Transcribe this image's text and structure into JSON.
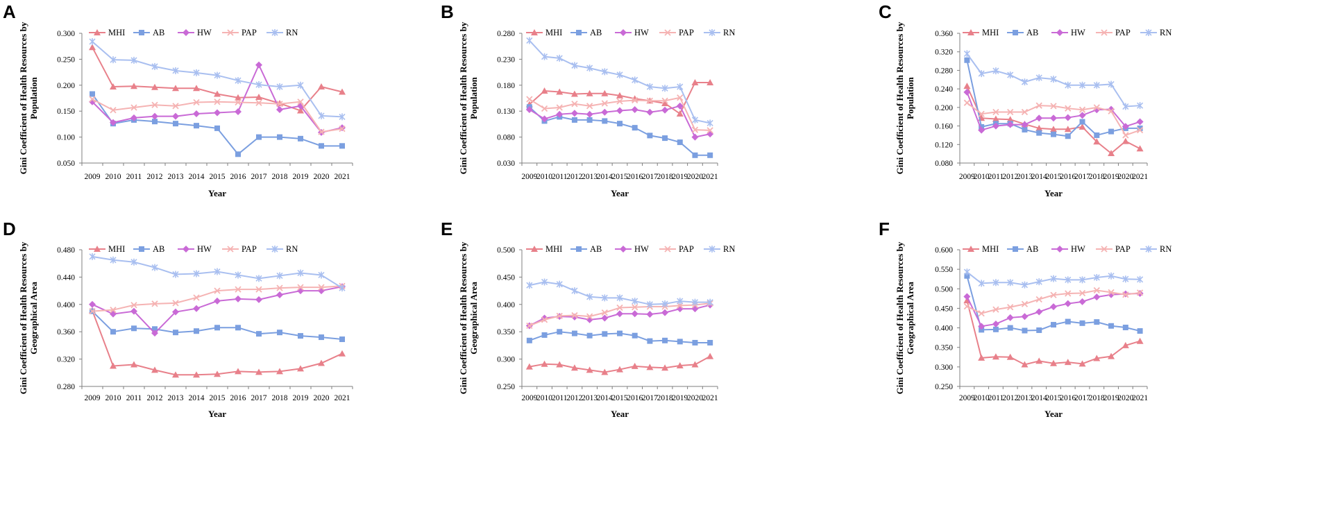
{
  "figure": {
    "years": [
      "2009",
      "2010",
      "2011",
      "2012",
      "2013",
      "2014",
      "2015",
      "2016",
      "2017",
      "2018",
      "2019",
      "2020",
      "2021"
    ],
    "xlabel": "Year",
    "colors": {
      "MHI": "#e8808a",
      "AB": "#7b9fe0",
      "HW": "#c96ad6",
      "PAP": "#f5b3b3",
      "RN": "#a9bff0"
    },
    "markers": {
      "MHI": "triangle",
      "AB": "square",
      "HW": "diamond",
      "PAP": "x-cross",
      "RN": "x-star"
    }
  },
  "chart_data": [
    {
      "panel": "A",
      "type": "line",
      "ylabel": [
        "Gini Coefficient of Health Resources by",
        "Population"
      ],
      "ylim": [
        0.05,
        0.3
      ],
      "yticks": [
        "0.050",
        "0.100",
        "0.150",
        "0.200",
        "0.250",
        "0.300"
      ],
      "series": [
        {
          "name": "MHI",
          "values": [
            0.273,
            0.197,
            0.198,
            0.196,
            0.194,
            0.194,
            0.183,
            0.176,
            0.177,
            0.165,
            0.151,
            0.197,
            0.187
          ]
        },
        {
          "name": "AB",
          "values": [
            0.183,
            0.126,
            0.133,
            0.13,
            0.126,
            0.122,
            0.117,
            0.067,
            0.1,
            0.1,
            0.097,
            0.083,
            0.083
          ]
        },
        {
          "name": "HW",
          "values": [
            0.168,
            0.128,
            0.137,
            0.14,
            0.14,
            0.145,
            0.147,
            0.149,
            0.239,
            0.153,
            0.16,
            0.109,
            0.118
          ]
        },
        {
          "name": "PAP",
          "values": [
            0.173,
            0.152,
            0.157,
            0.162,
            0.16,
            0.167,
            0.168,
            0.167,
            0.166,
            0.164,
            0.168,
            0.11,
            0.116
          ]
        },
        {
          "name": "RN",
          "values": [
            0.284,
            0.249,
            0.248,
            0.236,
            0.228,
            0.224,
            0.219,
            0.209,
            0.201,
            0.197,
            0.2,
            0.141,
            0.139
          ]
        }
      ]
    },
    {
      "panel": "B",
      "type": "line",
      "ylabel": [
        "Gini Coefficient of Health Resources by",
        "Population"
      ],
      "ylim": [
        0.03,
        0.28
      ],
      "yticks": [
        "0.030",
        "0.080",
        "0.130",
        "0.180",
        "0.230",
        "0.280"
      ],
      "series": [
        {
          "name": "MHI",
          "values": [
            0.143,
            0.169,
            0.167,
            0.163,
            0.164,
            0.164,
            0.16,
            0.154,
            0.15,
            0.145,
            0.125,
            0.185,
            0.185
          ]
        },
        {
          "name": "AB",
          "values": [
            0.138,
            0.111,
            0.119,
            0.113,
            0.113,
            0.111,
            0.106,
            0.098,
            0.083,
            0.078,
            0.07,
            0.045,
            0.045
          ]
        },
        {
          "name": "HW",
          "values": [
            0.133,
            0.115,
            0.124,
            0.126,
            0.124,
            0.128,
            0.131,
            0.133,
            0.128,
            0.132,
            0.14,
            0.08,
            0.086
          ]
        },
        {
          "name": "PAP",
          "values": [
            0.153,
            0.135,
            0.137,
            0.144,
            0.14,
            0.145,
            0.149,
            0.151,
            0.15,
            0.15,
            0.156,
            0.094,
            0.093
          ]
        },
        {
          "name": "RN",
          "values": [
            0.266,
            0.235,
            0.232,
            0.218,
            0.213,
            0.206,
            0.2,
            0.19,
            0.177,
            0.174,
            0.177,
            0.113,
            0.107
          ]
        }
      ]
    },
    {
      "panel": "C",
      "type": "line",
      "ylabel": [
        "Gini Coefficient of Health Resources by",
        "Population"
      ],
      "ylim": [
        0.08,
        0.36
      ],
      "yticks": [
        "0.080",
        "0.120",
        "0.160",
        "0.200",
        "0.240",
        "0.280",
        "0.320",
        "0.360"
      ],
      "series": [
        {
          "name": "MHI",
          "values": [
            0.246,
            0.177,
            0.175,
            0.174,
            0.164,
            0.155,
            0.153,
            0.153,
            0.158,
            0.126,
            0.101,
            0.127,
            0.111
          ]
        },
        {
          "name": "AB",
          "values": [
            0.302,
            0.158,
            0.165,
            0.165,
            0.152,
            0.145,
            0.142,
            0.138,
            0.169,
            0.14,
            0.148,
            0.155,
            0.155
          ]
        },
        {
          "name": "HW",
          "values": [
            0.233,
            0.151,
            0.16,
            0.163,
            0.163,
            0.177,
            0.177,
            0.178,
            0.183,
            0.195,
            0.196,
            0.159,
            0.169
          ]
        },
        {
          "name": "PAP",
          "values": [
            0.21,
            0.186,
            0.19,
            0.19,
            0.19,
            0.204,
            0.203,
            0.198,
            0.195,
            0.2,
            0.192,
            0.14,
            0.151
          ]
        },
        {
          "name": "RN",
          "values": [
            0.316,
            0.273,
            0.279,
            0.27,
            0.255,
            0.264,
            0.261,
            0.248,
            0.248,
            0.248,
            0.25,
            0.202,
            0.204
          ]
        }
      ]
    },
    {
      "panel": "D",
      "type": "line",
      "ylabel": [
        "Gini Coefficient of Health Resources by",
        "Geographical Area"
      ],
      "ylim": [
        0.28,
        0.48
      ],
      "yticks": [
        "0.280",
        "0.320",
        "0.360",
        "0.400",
        "0.440",
        "0.480"
      ],
      "series": [
        {
          "name": "MHI",
          "values": [
            0.391,
            0.31,
            0.312,
            0.304,
            0.297,
            0.297,
            0.298,
            0.302,
            0.301,
            0.302,
            0.306,
            0.314,
            0.328
          ]
        },
        {
          "name": "AB",
          "values": [
            0.39,
            0.36,
            0.365,
            0.364,
            0.359,
            0.361,
            0.366,
            0.366,
            0.357,
            0.359,
            0.354,
            0.352,
            0.349
          ]
        },
        {
          "name": "HW",
          "values": [
            0.4,
            0.386,
            0.39,
            0.358,
            0.389,
            0.394,
            0.405,
            0.408,
            0.407,
            0.414,
            0.42,
            0.42,
            0.426
          ]
        },
        {
          "name": "PAP",
          "values": [
            0.39,
            0.392,
            0.399,
            0.401,
            0.402,
            0.41,
            0.42,
            0.422,
            0.422,
            0.424,
            0.425,
            0.425,
            0.427
          ]
        },
        {
          "name": "RN",
          "values": [
            0.47,
            0.465,
            0.462,
            0.454,
            0.444,
            0.445,
            0.448,
            0.443,
            0.438,
            0.442,
            0.446,
            0.443,
            0.424
          ]
        }
      ]
    },
    {
      "panel": "E",
      "type": "line",
      "ylabel": [
        "Gini Coefficient of Health Resources by",
        "Geographical Area"
      ],
      "ylim": [
        0.25,
        0.5
      ],
      "yticks": [
        "0.250",
        "0.300",
        "0.350",
        "0.400",
        "0.450",
        "0.500"
      ],
      "series": [
        {
          "name": "MHI",
          "values": [
            0.286,
            0.291,
            0.29,
            0.284,
            0.28,
            0.276,
            0.281,
            0.287,
            0.285,
            0.284,
            0.288,
            0.29,
            0.305
          ]
        },
        {
          "name": "AB",
          "values": [
            0.334,
            0.344,
            0.35,
            0.347,
            0.343,
            0.346,
            0.347,
            0.343,
            0.333,
            0.334,
            0.332,
            0.33,
            0.33
          ]
        },
        {
          "name": "HW",
          "values": [
            0.361,
            0.375,
            0.378,
            0.377,
            0.372,
            0.375,
            0.383,
            0.383,
            0.382,
            0.385,
            0.392,
            0.392,
            0.399
          ]
        },
        {
          "name": "PAP",
          "values": [
            0.361,
            0.372,
            0.379,
            0.38,
            0.378,
            0.385,
            0.394,
            0.395,
            0.396,
            0.396,
            0.398,
            0.399,
            0.402
          ]
        },
        {
          "name": "RN",
          "values": [
            0.435,
            0.441,
            0.437,
            0.425,
            0.414,
            0.412,
            0.412,
            0.406,
            0.4,
            0.401,
            0.406,
            0.404,
            0.404
          ]
        }
      ]
    },
    {
      "panel": "F",
      "type": "line",
      "ylabel": [
        "Gini Coefficient of Health Resources by",
        "Geographical Area"
      ],
      "ylim": [
        0.25,
        0.6
      ],
      "yticks": [
        "0.250",
        "0.300",
        "0.350",
        "0.400",
        "0.450",
        "0.500",
        "0.550",
        "0.600"
      ],
      "series": [
        {
          "name": "MHI",
          "values": [
            0.47,
            0.323,
            0.326,
            0.325,
            0.306,
            0.315,
            0.309,
            0.312,
            0.308,
            0.322,
            0.327,
            0.355,
            0.366
          ]
        },
        {
          "name": "AB",
          "values": [
            0.533,
            0.395,
            0.396,
            0.4,
            0.393,
            0.394,
            0.408,
            0.416,
            0.412,
            0.415,
            0.405,
            0.401,
            0.392
          ]
        },
        {
          "name": "HW",
          "values": [
            0.48,
            0.404,
            0.41,
            0.426,
            0.429,
            0.441,
            0.454,
            0.462,
            0.467,
            0.479,
            0.485,
            0.487,
            0.488
          ]
        },
        {
          "name": "PAP",
          "values": [
            0.455,
            0.437,
            0.447,
            0.453,
            0.461,
            0.473,
            0.484,
            0.488,
            0.489,
            0.496,
            0.491,
            0.485,
            0.49
          ]
        },
        {
          "name": "RN",
          "values": [
            0.543,
            0.514,
            0.516,
            0.516,
            0.51,
            0.518,
            0.526,
            0.523,
            0.523,
            0.529,
            0.533,
            0.525,
            0.524
          ]
        }
      ]
    }
  ]
}
